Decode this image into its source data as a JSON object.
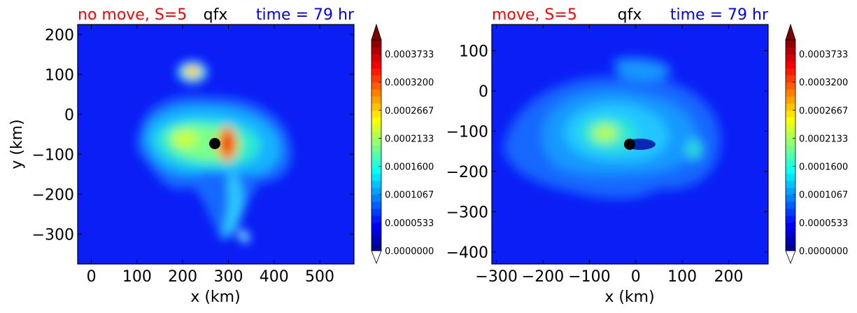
{
  "chart_data": [
    {
      "type": "contour",
      "variable": "qfx",
      "title_left": "no move, S=5",
      "title_center": "qfx",
      "title_right": "time = 79 hr",
      "xlabel": "x (km)",
      "ylabel": "y (km)",
      "xlim": [
        -30,
        575
      ],
      "ylim": [
        -375,
        225
      ],
      "xticks": [
        0,
        100,
        200,
        300,
        400,
        500
      ],
      "yticks": [
        200,
        100,
        0,
        -100,
        -200,
        -300
      ],
      "xtick_labels": [
        "0",
        "100",
        "200",
        "300",
        "400",
        "500"
      ],
      "ytick_labels": [
        "200",
        "100",
        "0",
        "−100",
        "−200",
        "−300"
      ],
      "center_marker": {
        "x": 275,
        "y": -75
      },
      "features": [
        {
          "x": 300,
          "y": -80,
          "value": 0.00036
        },
        {
          "x": 225,
          "y": 100,
          "value": 0.00031
        },
        {
          "x": 200,
          "y": -60,
          "value": 0.00019
        },
        {
          "x": 330,
          "y": -300,
          "value": 0.00016
        }
      ],
      "colorbar": {
        "vmin": 0.0,
        "vmax": 0.0004,
        "levels": 30,
        "tick_values": [
          0.0,
          5.33e-05,
          0.0001067,
          0.00016,
          0.0002133,
          0.0002667,
          0.00032,
          0.0003733
        ],
        "tick_labels": [
          "0.0000000",
          "0.0000533",
          "0.0001067",
          "0.0001600",
          "0.0002133",
          "0.0002667",
          "0.0003200",
          "0.0003733"
        ],
        "extend": "both"
      }
    },
    {
      "type": "contour",
      "variable": "qfx",
      "title_left": "move, S=5",
      "title_center": "qfx",
      "title_right": "time = 79 hr",
      "xlabel": "x (km)",
      "ylabel": "",
      "xlim": [
        -310,
        285
      ],
      "ylim": [
        -430,
        165
      ],
      "xticks": [
        -300,
        -200,
        -100,
        0,
        100,
        200
      ],
      "yticks": [
        100,
        0,
        -100,
        -200,
        -300,
        -400
      ],
      "xtick_labels": [
        "−300",
        "−200",
        "−100",
        "0",
        "100",
        "200"
      ],
      "ytick_labels": [
        "100",
        "0",
        "−100",
        "−200",
        "−300",
        "−400"
      ],
      "center_marker": {
        "x": -15,
        "y": -135
      },
      "features": [
        {
          "x": -65,
          "y": -110,
          "value": 0.00022
        },
        {
          "x": -40,
          "y": -120,
          "value": 0.00016
        },
        {
          "x": 150,
          "y": -150,
          "value": 0.00011
        },
        {
          "x": 60,
          "y": 30,
          "value": 7e-05
        }
      ],
      "colorbar": {
        "vmin": 0.0,
        "vmax": 0.0004,
        "levels": 30,
        "tick_values": [
          0.0,
          5.33e-05,
          0.0001067,
          0.00016,
          0.0002133,
          0.0002667,
          0.00032,
          0.0003733
        ],
        "tick_labels": [
          "0.0000000",
          "0.0000533",
          "0.0001067",
          "0.0001600",
          "0.0002133",
          "0.0002667",
          "0.0003200",
          "0.0003733"
        ],
        "extend": "both"
      }
    }
  ]
}
